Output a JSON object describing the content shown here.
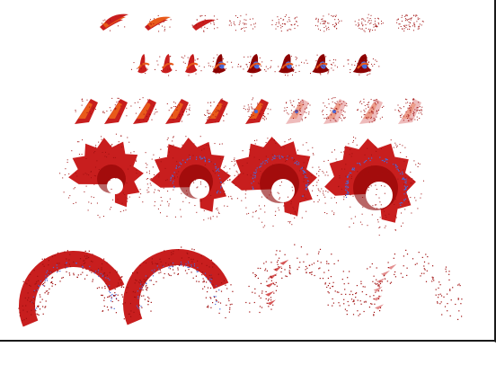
{
  "figure": {
    "description_visible_text": "",
    "palette": {
      "deep_red": "#8b0000",
      "red": "#c81e1e",
      "orange": "#e85a1a",
      "blue": "#4a6ad8",
      "dot_red": "#a01010",
      "background": "#ffffff",
      "border": "#1a1a1a"
    },
    "rows": [
      {
        "name": "row-1-thin-wisps",
        "count": 8
      },
      {
        "name": "row-2-curled-shapes",
        "count": 8
      },
      {
        "name": "row-3-arrowheads",
        "count": 10
      },
      {
        "name": "row-4-spiral-fans",
        "count": 4
      },
      {
        "name": "row-5-arc-fans",
        "count": 4
      }
    ]
  }
}
